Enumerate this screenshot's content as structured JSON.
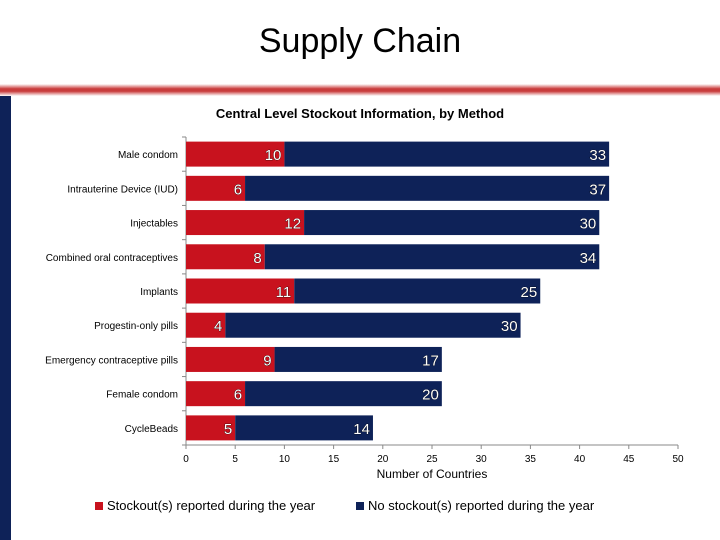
{
  "slide": {
    "title": "Supply Chain"
  },
  "colors": {
    "stockout": "#c8121e",
    "no_stockout": "#0e2258",
    "accent_rule": "#c93c3c"
  },
  "chart_data": {
    "type": "bar",
    "orientation": "horizontal",
    "stacked": true,
    "title": "Central Level Stockout Information, by Method",
    "xlabel": "Number of Countries",
    "ylabel": "",
    "xlim": [
      0,
      50
    ],
    "xticks": [
      0,
      5,
      10,
      15,
      20,
      25,
      30,
      35,
      40,
      45,
      50
    ],
    "categories": [
      "Male condom",
      "Intrauterine Device (IUD)",
      "Injectables",
      "Combined oral contraceptives",
      "Implants",
      "Progestin-only pills",
      "Emergency contraceptive pills",
      "Female condom",
      "CycleBeads"
    ],
    "series": [
      {
        "name": "Stockout(s) reported during the year",
        "color": "#c8121e",
        "values": [
          10,
          6,
          12,
          8,
          11,
          4,
          9,
          6,
          5
        ]
      },
      {
        "name": "No stockout(s) reported during the year",
        "color": "#0e2258",
        "values": [
          33,
          37,
          30,
          34,
          25,
          30,
          17,
          20,
          14
        ]
      }
    ],
    "legend_position": "bottom",
    "grid": false
  }
}
